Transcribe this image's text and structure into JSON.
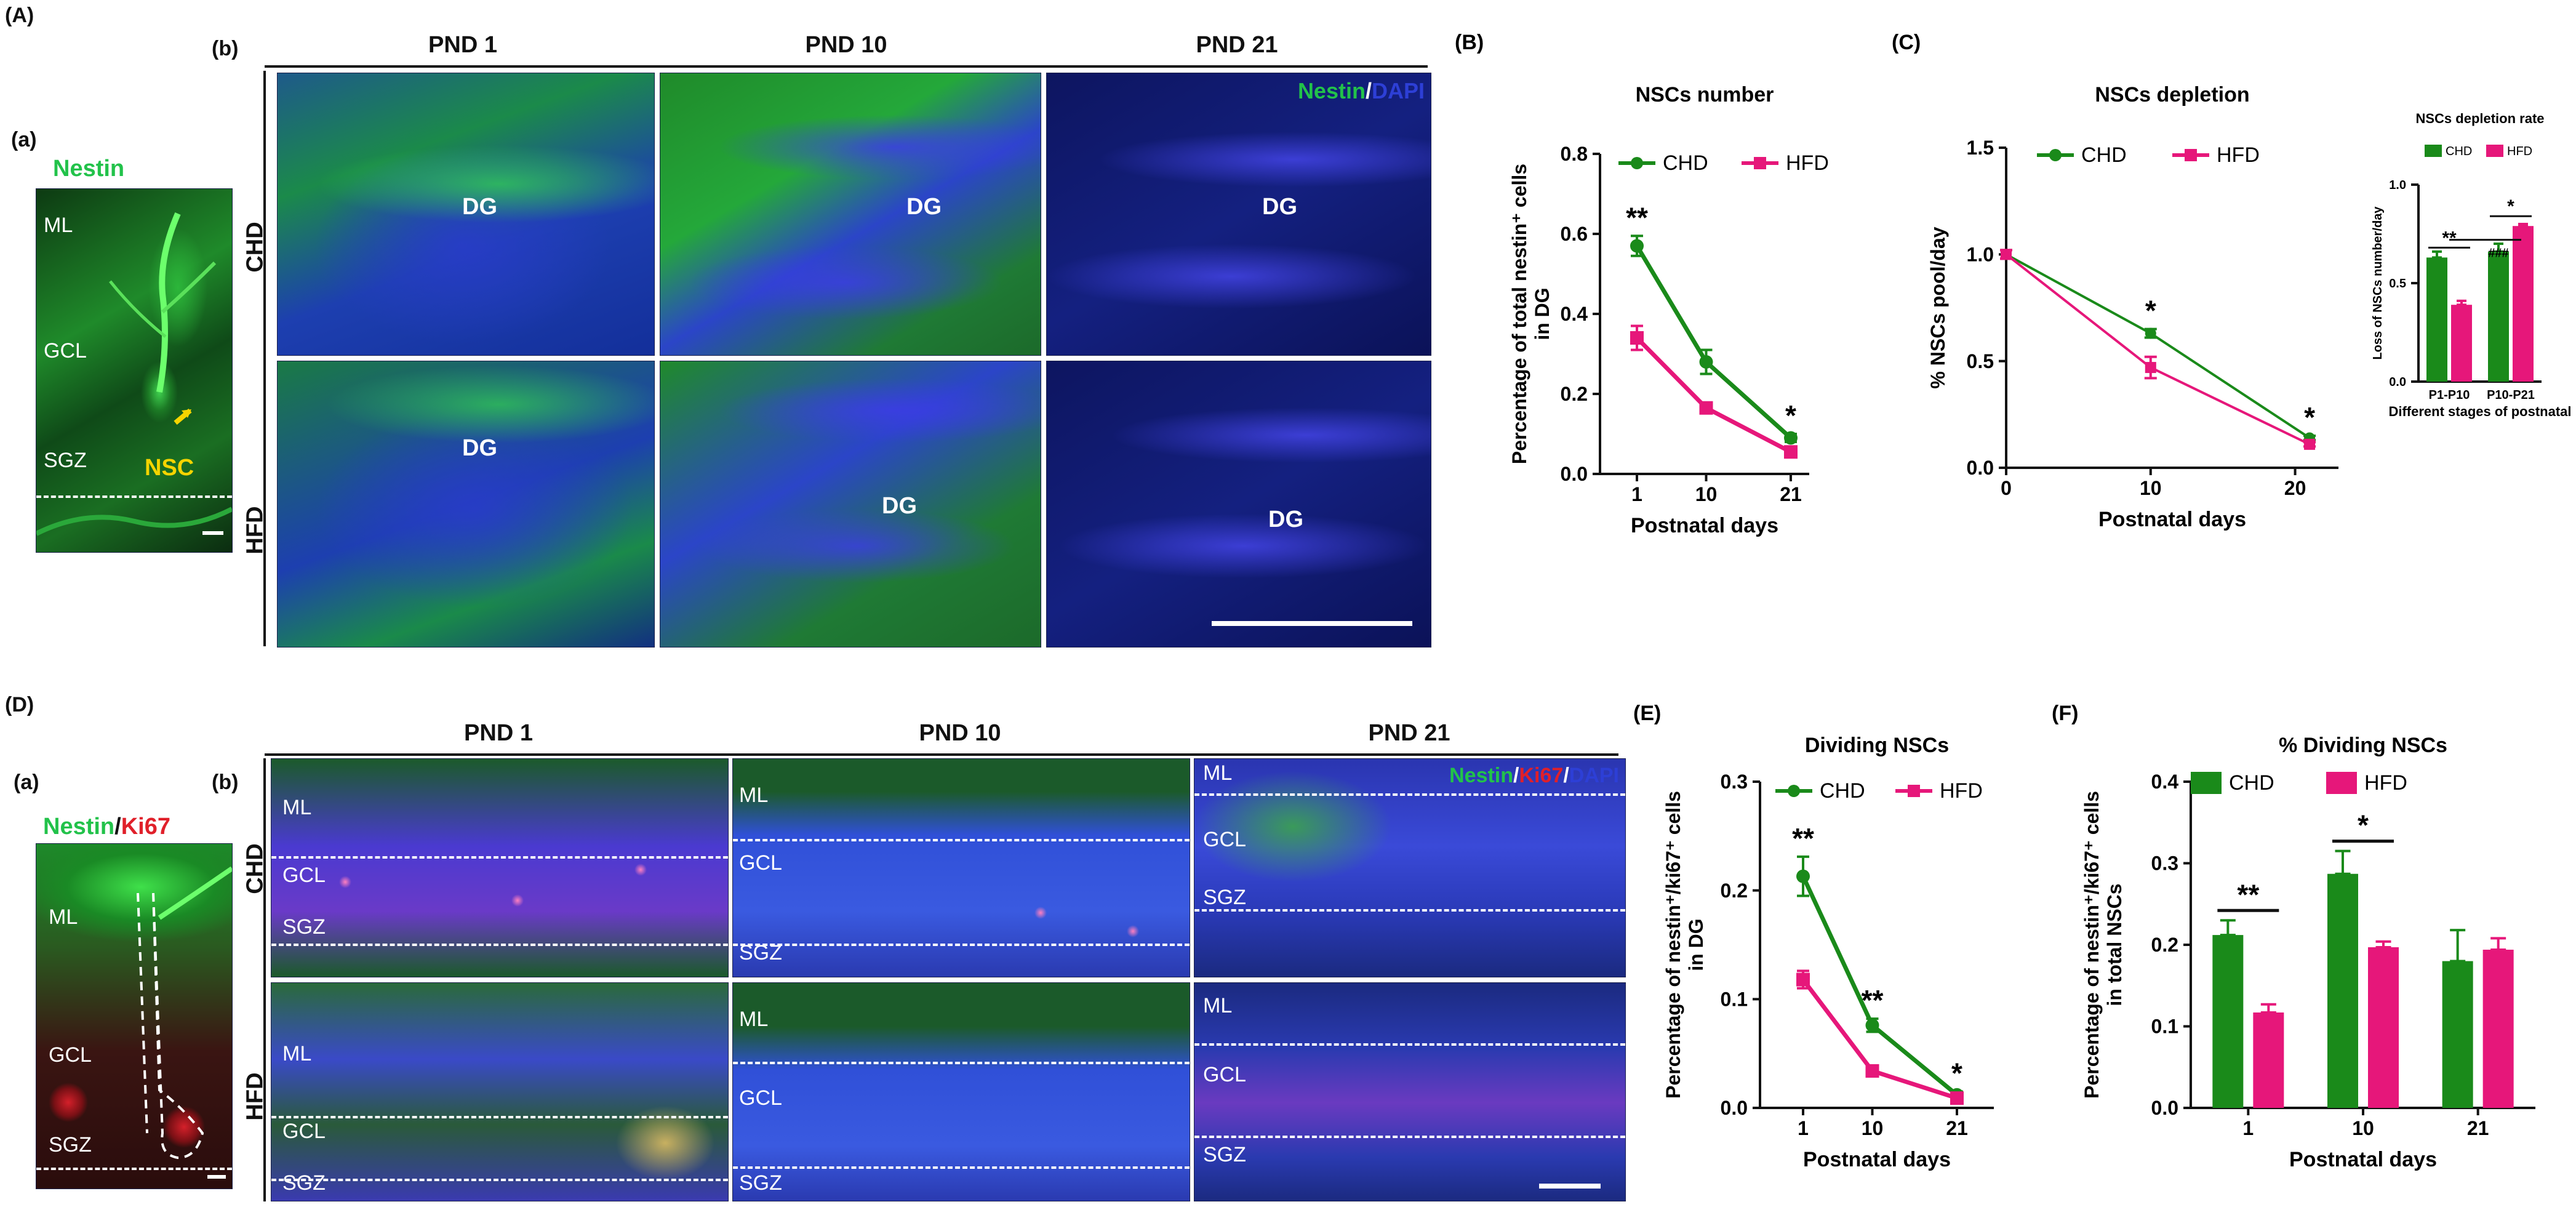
{
  "top": {
    "A_label": "(A)",
    "a_label": "(a)",
    "b_label": "(b)",
    "a_stain": "Nestin",
    "a_regions": {
      "ml": "ML",
      "gcl": "GCL",
      "sgz": "SGZ",
      "nsc": "NSC"
    },
    "columns": [
      "PND 1",
      "PND 10",
      "PND 21"
    ],
    "rows": [
      "CHD",
      "HFD"
    ],
    "region": "DG",
    "stain_nestin": "Nestin",
    "stain_sep": "/",
    "stain_dapi": "DAPI"
  },
  "bottom": {
    "D_label": "(D)",
    "a_label": "(a)",
    "b_label": "(b)",
    "a_stain_nestin": "Nestin",
    "a_stain_sep": "/",
    "a_stain_ki67": "Ki67",
    "a_regions": {
      "ml": "ML",
      "gcl": "GCL",
      "sgz": "SGZ"
    },
    "columns": [
      "PND 1",
      "PND 10",
      "PND 21"
    ],
    "rows": [
      "CHD",
      "HFD"
    ],
    "regions": {
      "ml": "ML",
      "gcl": "GCL",
      "sgz": "SGZ"
    },
    "stain_nestin": "Nestin",
    "stain_sep1": "/",
    "stain_ki67": "Ki67",
    "stain_sep2": "/",
    "stain_dapi": "DAPI"
  },
  "colors": {
    "chd": "#1a8a1a",
    "hfd": "#e6177a",
    "nestin": "#22c24a",
    "dapi": "#2d3fd6",
    "ki67": "#e0202a"
  },
  "chart_data": [
    {
      "id": "B",
      "panel_label": "(B)",
      "type": "line",
      "title": "NSCs number",
      "xlabel": "Postnatal days",
      "ylabel_lines": [
        "Percentage of total nestin⁺ cells",
        "in DG"
      ],
      "x": [
        1,
        10,
        21
      ],
      "x_ticks": [
        "1",
        "10",
        "21"
      ],
      "ylim": [
        0,
        0.8
      ],
      "y_ticks": [
        "0.0",
        "0.2",
        "0.4",
        "0.6",
        "0.8"
      ],
      "series": [
        {
          "name": "CHD",
          "values": [
            0.57,
            0.28,
            0.09
          ],
          "errors": [
            0.025,
            0.03,
            0.01
          ]
        },
        {
          "name": "HFD",
          "values": [
            0.34,
            0.165,
            0.055
          ],
          "errors": [
            0.03,
            0.01,
            0.008
          ]
        }
      ],
      "annotations": [
        "**",
        "",
        "*"
      ],
      "legend": "top"
    },
    {
      "id": "C",
      "panel_label": "(C)",
      "type": "line",
      "title": "NSCs depletion",
      "xlabel": "Postnatal days",
      "ylabel": "% NSCs pool/day",
      "x": [
        0,
        10,
        21
      ],
      "x_ticks": [
        "0",
        "10",
        "20"
      ],
      "xlim": [
        0,
        23
      ],
      "ylim": [
        0,
        1.5
      ],
      "y_ticks": [
        "0.0",
        "0.5",
        "1.0",
        "1.5"
      ],
      "series": [
        {
          "name": "CHD",
          "values": [
            1.0,
            0.63,
            0.14
          ],
          "errors": [
            0.02,
            0.02,
            0.01
          ]
        },
        {
          "name": "HFD",
          "values": [
            1.0,
            0.47,
            0.11
          ],
          "errors": [
            0.02,
            0.05,
            0.01
          ]
        }
      ],
      "annotations": [
        "",
        "*",
        "*"
      ],
      "legend": "top-left"
    },
    {
      "id": "C_inset",
      "type": "bar",
      "title": "NSCs depletion rate",
      "xlabel": "Different stages of postnatal",
      "ylabel": "Loss of NSCs number/day",
      "categories": [
        "P1-P10",
        "P10-P21"
      ],
      "ylim": [
        0,
        1.0
      ],
      "y_ticks": [
        "0.0",
        "0.5",
        "1.0"
      ],
      "series": [
        {
          "name": "CHD",
          "values": [
            0.63,
            0.66
          ],
          "errors": [
            0.03,
            0.04
          ]
        },
        {
          "name": "HFD",
          "values": [
            0.39,
            0.79
          ],
          "errors": [
            0.02,
            0.01
          ]
        }
      ],
      "annotations": [
        "**",
        "*",
        "###"
      ],
      "legend": "top"
    },
    {
      "id": "E",
      "panel_label": "(E)",
      "type": "line",
      "title": "Dividing NSCs",
      "xlabel": "Postnatal days",
      "ylabel_lines": [
        "Percentage of nestin⁺/ki67⁺ cells",
        "in DG"
      ],
      "x": [
        1,
        10,
        21
      ],
      "x_ticks": [
        "1",
        "10",
        "21"
      ],
      "ylim": [
        0,
        0.3
      ],
      "y_ticks": [
        "0.0",
        "0.1",
        "0.2",
        "0.3"
      ],
      "series": [
        {
          "name": "CHD",
          "values": [
            0.213,
            0.076,
            0.012
          ],
          "errors": [
            0.018,
            0.006,
            0.003
          ]
        },
        {
          "name": "HFD",
          "values": [
            0.118,
            0.034,
            0.009
          ],
          "errors": [
            0.008,
            0.003,
            0.002
          ]
        }
      ],
      "annotations": [
        "**",
        "**",
        "*"
      ],
      "legend": "top"
    },
    {
      "id": "F",
      "panel_label": "(F)",
      "type": "bar",
      "title": "% Dividing NSCs",
      "xlabel": "Postnatal days",
      "ylabel_lines": [
        "Percentage of nestin⁺/ki67⁺ cells",
        "in total NSCs"
      ],
      "categories": [
        "1",
        "10",
        "21"
      ],
      "ylim": [
        0,
        0.4
      ],
      "y_ticks": [
        "0.0",
        "0.1",
        "0.2",
        "0.3",
        "0.4"
      ],
      "series": [
        {
          "name": "CHD",
          "values": [
            0.212,
            0.287,
            0.18
          ],
          "errors": [
            0.018,
            0.028,
            0.038
          ]
        },
        {
          "name": "HFD",
          "values": [
            0.117,
            0.197,
            0.194
          ],
          "errors": [
            0.01,
            0.007,
            0.014
          ]
        }
      ],
      "annotations": [
        "**",
        "*",
        ""
      ],
      "legend": "top"
    }
  ]
}
